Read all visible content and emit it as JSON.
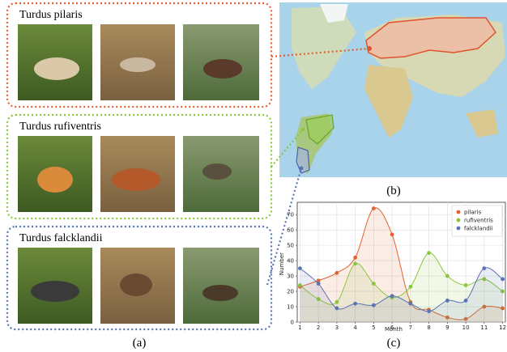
{
  "panels": {
    "a": {
      "caption": "(a)",
      "species": [
        "Turdus pilaris",
        "Turdus rufiventris",
        "Turdus falcklandii"
      ]
    },
    "b": {
      "caption": "(b)"
    },
    "c": {
      "caption": "(c)"
    }
  },
  "chart_data": {
    "type": "line",
    "x": [
      1,
      2,
      3,
      4,
      5,
      6,
      7,
      8,
      9,
      10,
      11,
      12
    ],
    "series": [
      {
        "name": "pilaris",
        "color": "#e0622f",
        "values": [
          23,
          27,
          32,
          42,
          74,
          57,
          13,
          8,
          3,
          2,
          10,
          9
        ]
      },
      {
        "name": "rufiventris",
        "color": "#8cc63f",
        "values": [
          24,
          15,
          13,
          38,
          25,
          16,
          23,
          45,
          30,
          24,
          28,
          20
        ]
      },
      {
        "name": "falcklandii",
        "color": "#5b74b3",
        "values": [
          35,
          25,
          9,
          12,
          11,
          17,
          12,
          7,
          14,
          14,
          35,
          28
        ]
      }
    ],
    "xlim": [
      0.85,
      12.15
    ],
    "xticks": [
      1,
      2,
      3,
      4,
      5,
      6,
      7,
      8,
      9,
      10,
      11,
      12
    ],
    "ylim": [
      0,
      78
    ],
    "yticks": [
      0,
      10,
      20,
      30,
      40,
      50,
      60,
      70
    ],
    "xlabel": "Month",
    "ylabel": "Number",
    "grid": true,
    "legend": "upper right"
  }
}
